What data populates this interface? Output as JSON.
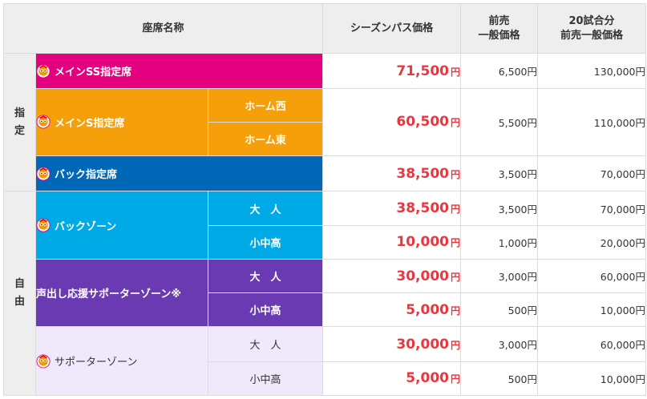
{
  "header": {
    "seat_name": "座席名称",
    "season_pass_price": "シーズンパス価格",
    "advance_general_line1": "前売",
    "advance_general_line2": "一般価格",
    "twenty_games_line1": "20試合分",
    "twenty_games_line2": "前売一般価格"
  },
  "groups": {
    "reserved_char1": "指",
    "reserved_char2": "定",
    "free_char1": "自",
    "free_char2": "由"
  },
  "rows": {
    "main_ss": {
      "name": "メインSS指定席",
      "season": "71,500",
      "unit": "円",
      "advance": "6,500円",
      "twenty": "130,000円"
    },
    "main_s": {
      "name": "メインS指定席",
      "sub1": "ホーム西",
      "sub2": "ホーム東",
      "season": "60,500",
      "unit": "円",
      "advance": "5,500円",
      "twenty": "110,000円"
    },
    "back_reserved": {
      "name": "バック指定席",
      "season": "38,500",
      "unit": "円",
      "advance": "3,500円",
      "twenty": "70,000円"
    },
    "back_zone": {
      "name": "バックゾーン",
      "adult": {
        "label": "大　人",
        "season": "38,500",
        "unit": "円",
        "advance": "3,500円",
        "twenty": "70,000円"
      },
      "child": {
        "label": "小中高",
        "season": "10,000",
        "unit": "円",
        "advance": "1,000円",
        "twenty": "20,000円"
      }
    },
    "cheer_zone": {
      "name": "声出し応援サポーターゾーン※",
      "adult": {
        "label": "大　人",
        "season": "30,000",
        "unit": "円",
        "advance": "3,000円",
        "twenty": "60,000円"
      },
      "child": {
        "label": "小中高",
        "season": "5,000",
        "unit": "円",
        "advance": "500円",
        "twenty": "10,000円"
      }
    },
    "supporter_zone": {
      "name": "サポーターゾーン",
      "adult": {
        "label": "大　人",
        "season": "30,000",
        "unit": "円",
        "advance": "3,000円",
        "twenty": "60,000円"
      },
      "child": {
        "label": "小中高",
        "season": "5,000",
        "unit": "円",
        "advance": "500円",
        "twenty": "10,000円"
      }
    }
  },
  "icons": {
    "mascot": "mascot-icon"
  },
  "colors": {
    "pink": "#e4007f",
    "orange": "#f5a00a",
    "blue": "#0068b7",
    "cyan": "#00aae6",
    "purple": "#6a3ab2",
    "lavender": "#efe9fb",
    "price_red": "#e8373e"
  }
}
